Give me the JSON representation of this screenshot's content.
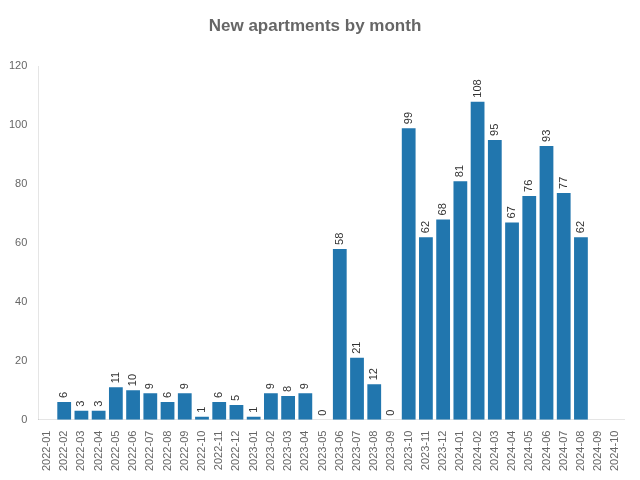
{
  "chart_data": {
    "type": "bar",
    "title": "New apartments by month",
    "categories": [
      "2022-01",
      "2022-02",
      "2022-03",
      "2022-04",
      "2022-05",
      "2022-06",
      "2022-07",
      "2022-08",
      "2022-09",
      "2022-10",
      "2022-11",
      "2022-12",
      "2023-01",
      "2023-02",
      "2023-03",
      "2023-04",
      "2023-05",
      "2023-06",
      "2023-07",
      "2023-08",
      "2023-09",
      "2023-10",
      "2023-11",
      "2023-12",
      "2024-01",
      "2024-02",
      "2024-03",
      "2024-04",
      "2024-05",
      "2024-06",
      "2024-07",
      "2024-08",
      "2024-09",
      "2024-10"
    ],
    "values": [
      0,
      6,
      3,
      3,
      11,
      10,
      9,
      6,
      9,
      1,
      6,
      5,
      1,
      9,
      8,
      9,
      0,
      58,
      21,
      12,
      0,
      99,
      62,
      68,
      81,
      108,
      95,
      67,
      76,
      93,
      77,
      62,
      0,
      0
    ],
    "value_labels": [
      null,
      "6",
      "3",
      "3",
      "11",
      "10",
      "9",
      "6",
      "9",
      "1",
      "6",
      "5",
      "1",
      "9",
      "8",
      "9",
      "0",
      "58",
      "21",
      "12",
      "0",
      "99",
      "62",
      "68",
      "81",
      "108",
      "95",
      "67",
      "76",
      "93",
      "77",
      "62",
      null,
      null
    ],
    "data_labels": true,
    "color": "#2176ae",
    "ylim": [
      0,
      120
    ],
    "yticks": [
      0,
      20,
      40,
      60,
      80,
      100,
      120
    ],
    "grid": false
  }
}
